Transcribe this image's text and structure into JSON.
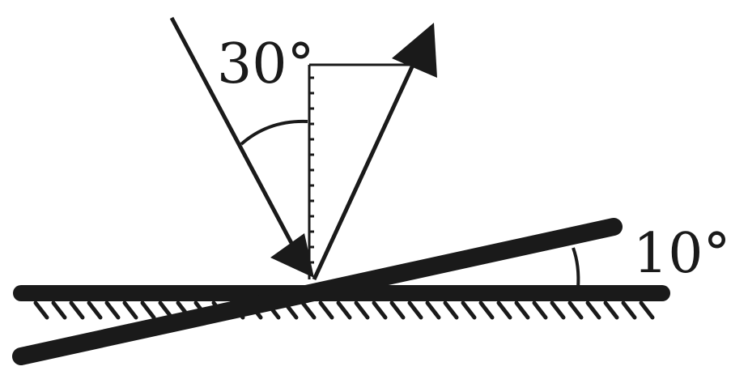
{
  "diagram": {
    "incident_angle_label": "30°",
    "mirror_tilt_label": "10°"
  },
  "colors": {
    "ink": "#1a1a1a",
    "background": "#ffffff"
  }
}
